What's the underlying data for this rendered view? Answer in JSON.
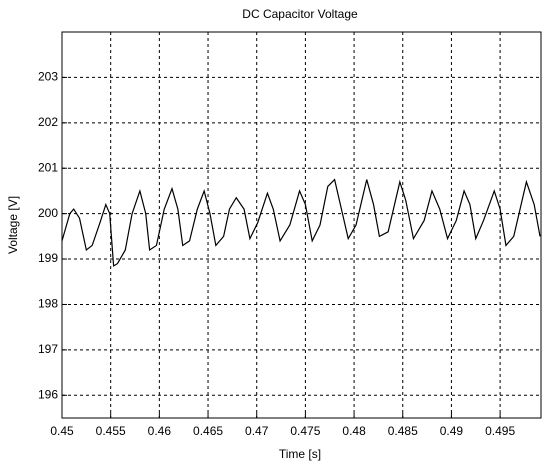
{
  "chart_data": {
    "type": "line",
    "title": "DC Capacitor Voltage",
    "x_label": "Time [s]",
    "y_label": "Voltage [V]",
    "xlim": [
      0.45,
      0.4992
    ],
    "ylim": [
      195.5,
      204
    ],
    "xticks": [
      0.45,
      0.455,
      0.46,
      0.465,
      0.47,
      0.475,
      0.48,
      0.485,
      0.49,
      0.495
    ],
    "yticks": [
      196,
      197,
      198,
      199,
      200,
      201,
      202,
      203
    ],
    "grid": true,
    "series": [
      {
        "color": "#000000",
        "x": [
          0.45,
          0.4508,
          0.4512,
          0.4518,
          0.4525,
          0.4531,
          0.4539,
          0.4545,
          0.4549,
          0.4553,
          0.4557,
          0.4565,
          0.4572,
          0.458,
          0.4586,
          0.459,
          0.4597,
          0.4605,
          0.4613,
          0.4619,
          0.4624,
          0.4631,
          0.4639,
          0.4646,
          0.4652,
          0.4658,
          0.4666,
          0.4672,
          0.4679,
          0.4687,
          0.4693,
          0.4701,
          0.4711,
          0.4717,
          0.4724,
          0.4734,
          0.4744,
          0.475,
          0.4757,
          0.4765,
          0.4773,
          0.478,
          0.4787,
          0.4794,
          0.4802,
          0.4813,
          0.482,
          0.4826,
          0.4835,
          0.4847,
          0.4853,
          0.4861,
          0.4872,
          0.488,
          0.4888,
          0.4896,
          0.4905,
          0.4913,
          0.4919,
          0.4925,
          0.4933,
          0.4944,
          0.495,
          0.4956,
          0.4964,
          0.4977,
          0.4985,
          0.4991
        ],
        "values": [
          199.4,
          200.0,
          200.1,
          199.9,
          199.2,
          199.3,
          199.8,
          200.2,
          200.0,
          198.85,
          198.9,
          199.2,
          200.0,
          200.5,
          200.0,
          199.2,
          199.3,
          200.1,
          200.55,
          200.1,
          199.3,
          199.4,
          200.1,
          200.5,
          200.0,
          199.3,
          199.5,
          200.1,
          200.35,
          200.1,
          199.45,
          199.8,
          200.45,
          200.1,
          199.4,
          199.75,
          200.5,
          200.2,
          199.4,
          199.75,
          200.6,
          200.75,
          200.1,
          199.45,
          199.75,
          200.75,
          200.2,
          199.5,
          199.6,
          200.7,
          200.3,
          199.45,
          199.85,
          200.5,
          200.1,
          199.45,
          199.85,
          200.5,
          200.2,
          199.45,
          199.85,
          200.5,
          200.1,
          199.3,
          199.5,
          200.7,
          200.2,
          199.5
        ]
      }
    ]
  }
}
